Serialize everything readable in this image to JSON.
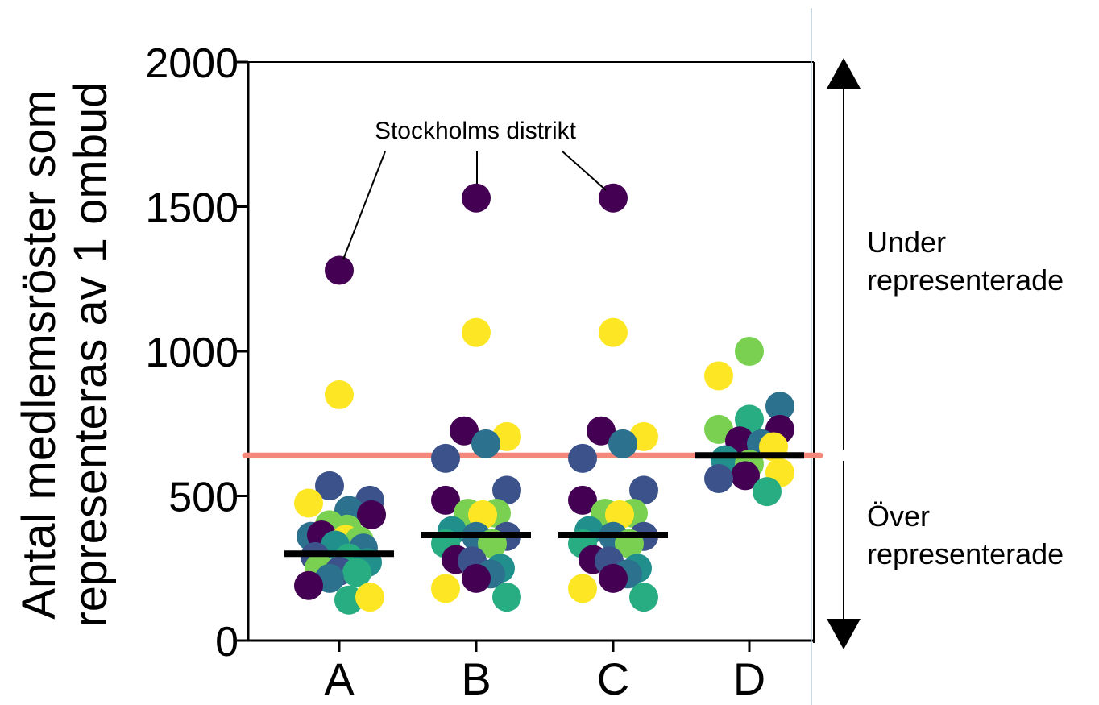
{
  "chart_data": {
    "type": "scatter",
    "ylabel_line1": "Antal medlemsröster som",
    "ylabel_line2": "representeras av 1 ombud",
    "ylim": [
      0,
      2000
    ],
    "yticks": [
      "0",
      "500",
      "1000",
      "1500",
      "2000"
    ],
    "categories": [
      "A",
      "B",
      "C",
      "D"
    ],
    "reference_line": {
      "value": 640,
      "color": "#f4877a"
    },
    "annotation": "Stockholms distrikt",
    "right_labels": {
      "upper_line1": "Under",
      "upper_line2": "representerade",
      "lower_line1": "Över",
      "lower_line2": "representerade"
    },
    "palette": {
      "purple": "#440154",
      "indigo": "#3b528b",
      "blue": "#2c728e",
      "teal": "#21908d",
      "green": "#27ad81",
      "lime": "#7ad151",
      "yellow": "#fde725"
    },
    "groups": [
      {
        "category": "A",
        "median": 300,
        "points": [
          {
            "dx": 0,
            "y": 1280,
            "c": "purple"
          },
          {
            "dx": 0,
            "y": 850,
            "c": "yellow"
          },
          {
            "dx": -12,
            "y": 535,
            "c": "indigo"
          },
          {
            "dx": 38,
            "y": 485,
            "c": "indigo"
          },
          {
            "dx": -38,
            "y": 475,
            "c": "yellow"
          },
          {
            "dx": 12,
            "y": 450,
            "c": "blue"
          },
          {
            "dx": 40,
            "y": 435,
            "c": "purple"
          },
          {
            "dx": -12,
            "y": 400,
            "c": "lime"
          },
          {
            "dx": 10,
            "y": 385,
            "c": "lime"
          },
          {
            "dx": -35,
            "y": 360,
            "c": "blue"
          },
          {
            "dx": -22,
            "y": 365,
            "c": "purple"
          },
          {
            "dx": 8,
            "y": 350,
            "c": "yellow"
          },
          {
            "dx": 25,
            "y": 345,
            "c": "lime"
          },
          {
            "dx": -5,
            "y": 330,
            "c": "teal"
          },
          {
            "dx": 30,
            "y": 320,
            "c": "blue"
          },
          {
            "dx": -30,
            "y": 290,
            "c": "indigo"
          },
          {
            "dx": 12,
            "y": 285,
            "c": "green"
          },
          {
            "dx": 35,
            "y": 270,
            "c": "teal"
          },
          {
            "dx": -25,
            "y": 250,
            "c": "lime"
          },
          {
            "dx": 0,
            "y": 240,
            "c": "indigo"
          },
          {
            "dx": 22,
            "y": 235,
            "c": "green"
          },
          {
            "dx": -12,
            "y": 215,
            "c": "blue"
          },
          {
            "dx": -38,
            "y": 190,
            "c": "purple"
          },
          {
            "dx": 12,
            "y": 140,
            "c": "green"
          },
          {
            "dx": 38,
            "y": 150,
            "c": "yellow"
          }
        ]
      },
      {
        "category": "B",
        "median": 365,
        "points": [
          {
            "dx": 0,
            "y": 1530,
            "c": "purple"
          },
          {
            "dx": 0,
            "y": 1065,
            "c": "yellow"
          },
          {
            "dx": -15,
            "y": 725,
            "c": "purple"
          },
          {
            "dx": 38,
            "y": 705,
            "c": "yellow"
          },
          {
            "dx": 12,
            "y": 680,
            "c": "blue"
          },
          {
            "dx": -38,
            "y": 630,
            "c": "indigo"
          },
          {
            "dx": 38,
            "y": 520,
            "c": "indigo"
          },
          {
            "dx": -38,
            "y": 485,
            "c": "purple"
          },
          {
            "dx": -10,
            "y": 440,
            "c": "lime"
          },
          {
            "dx": 25,
            "y": 440,
            "c": "lime"
          },
          {
            "dx": 8,
            "y": 435,
            "c": "yellow"
          },
          {
            "dx": -30,
            "y": 380,
            "c": "teal"
          },
          {
            "dx": 38,
            "y": 360,
            "c": "indigo"
          },
          {
            "dx": -38,
            "y": 335,
            "c": "green"
          },
          {
            "dx": 0,
            "y": 360,
            "c": "blue"
          },
          {
            "dx": 20,
            "y": 335,
            "c": "lime"
          },
          {
            "dx": -25,
            "y": 280,
            "c": "purple"
          },
          {
            "dx": -5,
            "y": 275,
            "c": "indigo"
          },
          {
            "dx": 30,
            "y": 250,
            "c": "teal"
          },
          {
            "dx": 18,
            "y": 230,
            "c": "blue"
          },
          {
            "dx": 0,
            "y": 215,
            "c": "purple"
          },
          {
            "dx": -38,
            "y": 180,
            "c": "yellow"
          },
          {
            "dx": 38,
            "y": 150,
            "c": "green"
          }
        ]
      },
      {
        "category": "C",
        "median": 365,
        "points": [
          {
            "dx": 0,
            "y": 1530,
            "c": "purple"
          },
          {
            "dx": 0,
            "y": 1065,
            "c": "yellow"
          },
          {
            "dx": -15,
            "y": 725,
            "c": "purple"
          },
          {
            "dx": 38,
            "y": 705,
            "c": "yellow"
          },
          {
            "dx": 12,
            "y": 680,
            "c": "blue"
          },
          {
            "dx": -38,
            "y": 630,
            "c": "indigo"
          },
          {
            "dx": 38,
            "y": 520,
            "c": "indigo"
          },
          {
            "dx": -38,
            "y": 485,
            "c": "purple"
          },
          {
            "dx": -10,
            "y": 440,
            "c": "lime"
          },
          {
            "dx": 25,
            "y": 440,
            "c": "lime"
          },
          {
            "dx": 8,
            "y": 435,
            "c": "yellow"
          },
          {
            "dx": -30,
            "y": 380,
            "c": "teal"
          },
          {
            "dx": 38,
            "y": 360,
            "c": "indigo"
          },
          {
            "dx": -38,
            "y": 335,
            "c": "green"
          },
          {
            "dx": 0,
            "y": 360,
            "c": "blue"
          },
          {
            "dx": 20,
            "y": 335,
            "c": "lime"
          },
          {
            "dx": -25,
            "y": 280,
            "c": "purple"
          },
          {
            "dx": -5,
            "y": 275,
            "c": "indigo"
          },
          {
            "dx": 30,
            "y": 250,
            "c": "teal"
          },
          {
            "dx": 18,
            "y": 230,
            "c": "blue"
          },
          {
            "dx": 0,
            "y": 215,
            "c": "purple"
          },
          {
            "dx": -38,
            "y": 180,
            "c": "yellow"
          },
          {
            "dx": 38,
            "y": 150,
            "c": "green"
          }
        ]
      },
      {
        "category": "D",
        "median": 640,
        "points": [
          {
            "dx": 0,
            "y": 1000,
            "c": "lime"
          },
          {
            "dx": -38,
            "y": 915,
            "c": "yellow"
          },
          {
            "dx": 38,
            "y": 810,
            "c": "blue"
          },
          {
            "dx": 0,
            "y": 765,
            "c": "green"
          },
          {
            "dx": -38,
            "y": 730,
            "c": "lime"
          },
          {
            "dx": 38,
            "y": 730,
            "c": "purple"
          },
          {
            "dx": -12,
            "y": 690,
            "c": "purple"
          },
          {
            "dx": 15,
            "y": 680,
            "c": "blue"
          },
          {
            "dx": 30,
            "y": 670,
            "c": "yellow"
          },
          {
            "dx": -30,
            "y": 625,
            "c": "teal"
          },
          {
            "dx": 0,
            "y": 610,
            "c": "lime"
          },
          {
            "dx": 38,
            "y": 580,
            "c": "yellow"
          },
          {
            "dx": -5,
            "y": 570,
            "c": "purple"
          },
          {
            "dx": -38,
            "y": 560,
            "c": "indigo"
          },
          {
            "dx": 22,
            "y": 515,
            "c": "green"
          }
        ]
      }
    ]
  }
}
